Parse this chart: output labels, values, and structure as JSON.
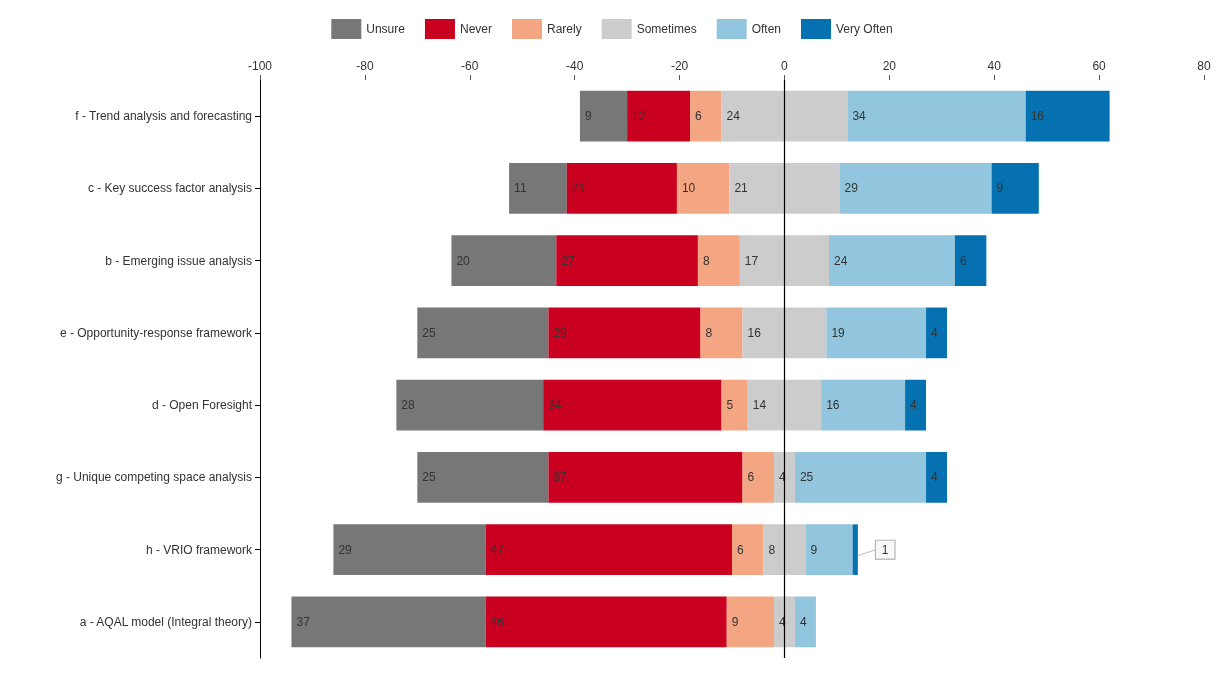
{
  "chart_data": {
    "type": "bar",
    "orientation": "horizontal",
    "data_labels": true,
    "legend": "top",
    "grid": false,
    "categories": [
      "f - Trend analysis and forecasting",
      "c - Key success factor analysis",
      "b - Emerging issue analysis",
      "e - Opportunity-response framework",
      "d - Open Foresight",
      "g - Unique competing space analysis",
      "h - VRIO framework",
      "a - AQAL model (Integral theory)"
    ],
    "xlim": [
      -100,
      80
    ],
    "xticks": [
      -100,
      -80,
      -60,
      -40,
      -20,
      0,
      20,
      40,
      60,
      80
    ],
    "ref_lines": [
      {
        "axis": "x",
        "value": 0,
        "color": "#000000"
      }
    ],
    "series": [
      {
        "name": "Unsure",
        "color": "#777777",
        "values": [
          9,
          11,
          20,
          25,
          28,
          25,
          29,
          37
        ],
        "base": [
          -39,
          -52.5,
          -63.5,
          -70,
          -74,
          -70,
          -86,
          -94
        ]
      },
      {
        "name": "Never",
        "color": "#ca0020",
        "values": [
          12,
          21,
          27,
          29,
          34,
          37,
          47,
          46
        ],
        "base": [
          -30,
          -41.5,
          -43.5,
          -45,
          -46,
          -45,
          -57,
          -57
        ]
      },
      {
        "name": "Rarely",
        "color": "#f4a582",
        "values": [
          6,
          10,
          8,
          8,
          5,
          6,
          6,
          9
        ],
        "base": [
          -18,
          -20.5,
          -16.5,
          -16,
          -12,
          -8,
          -10,
          -11
        ]
      },
      {
        "name": "Sometimes",
        "color": "#cccccc",
        "values": [
          24,
          21,
          17,
          16,
          14,
          4,
          8,
          4
        ],
        "base": [
          -12,
          -10.5,
          -8.5,
          -8,
          -7,
          -2,
          -4,
          -2
        ]
      },
      {
        "name": "Often",
        "color": "#92c5de",
        "values": [
          34,
          29,
          24,
          19,
          16,
          25,
          9,
          4
        ],
        "base": [
          12,
          10.5,
          8.5,
          8,
          7,
          2,
          4,
          2
        ]
      },
      {
        "name": "Very Often",
        "color": "#0571b0",
        "values": [
          16,
          9,
          6,
          4,
          4,
          4,
          1,
          null
        ],
        "base": [
          46,
          39.5,
          32.5,
          27,
          23,
          27,
          13,
          null
        ]
      }
    ]
  }
}
